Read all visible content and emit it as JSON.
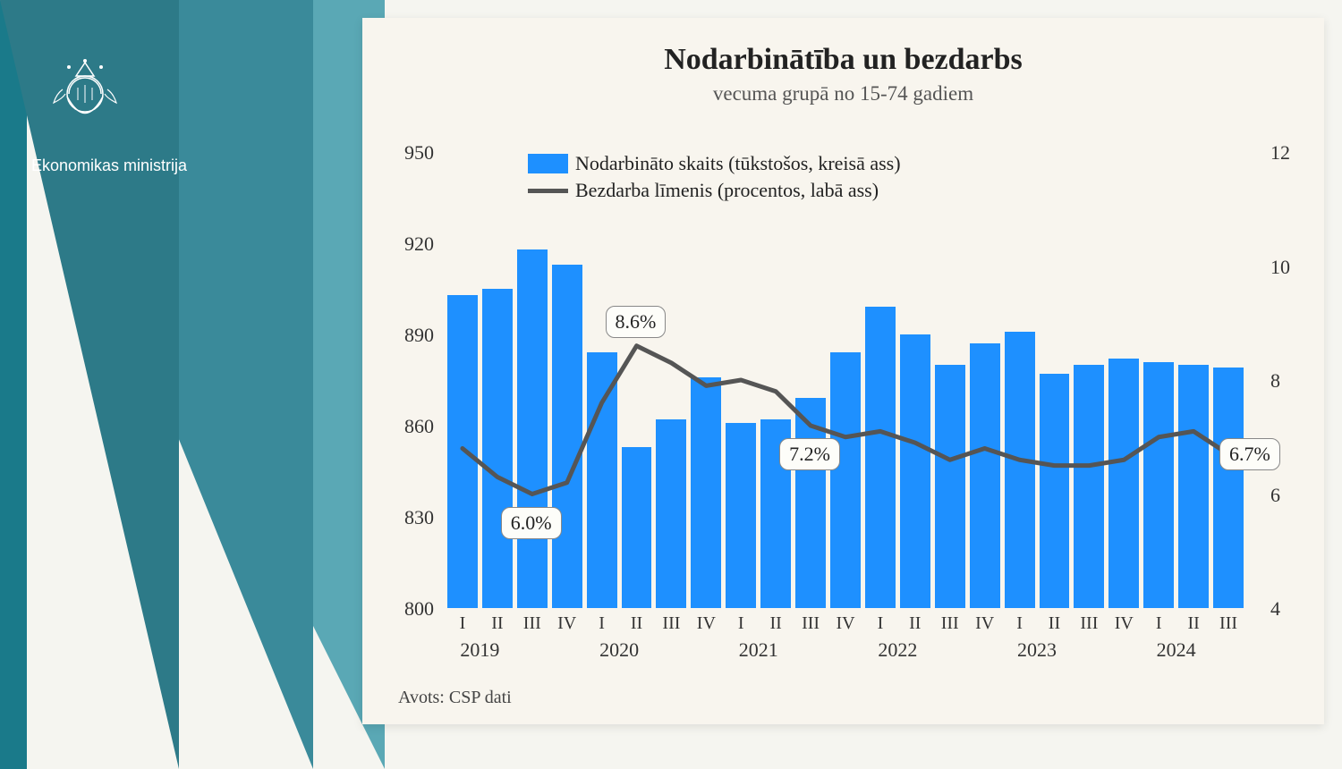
{
  "ministry_label": "Ekonomikas ministrija",
  "chart": {
    "title": "Nodarbinātība un bezdarbs",
    "subtitle": "vecuma grupā no 15-74 gadiem",
    "source": "Avots: CSP dati",
    "legend": {
      "bar_label": "Nodarbināto skaits (tūkstošos, kreisā ass)",
      "line_label": "Bezdarba līmenis (procentos, labā ass)"
    },
    "y_left": {
      "min": 800,
      "max": 950,
      "ticks": [
        800,
        830,
        860,
        890,
        920,
        950
      ]
    },
    "y_right": {
      "min": 4,
      "max": 12,
      "ticks": [
        4,
        6,
        8,
        10,
        12
      ]
    },
    "bar_color": "#1e90ff",
    "line_color": "#555555",
    "line_width": 5,
    "background_color": "#f8f5ee",
    "plot_bg": "#f8f5ee",
    "quarters": [
      "I",
      "II",
      "III",
      "IV",
      "I",
      "II",
      "III",
      "IV",
      "I",
      "II",
      "III",
      "IV",
      "I",
      "II",
      "III",
      "IV",
      "I",
      "II",
      "III",
      "IV",
      "I",
      "II",
      "III"
    ],
    "years": [
      "2019",
      "2020",
      "2021",
      "2022",
      "2023",
      "2024"
    ],
    "year_starts": [
      0,
      4,
      8,
      12,
      16,
      20
    ],
    "bar_values": [
      903,
      905,
      918,
      913,
      884,
      853,
      862,
      876,
      861,
      862,
      869,
      884,
      899,
      890,
      880,
      887,
      891,
      877,
      880,
      882,
      881,
      880,
      879
    ],
    "line_values": [
      6.8,
      6.3,
      6.0,
      6.2,
      7.6,
      8.6,
      8.3,
      7.9,
      8.0,
      7.8,
      7.2,
      7.0,
      7.1,
      6.9,
      6.6,
      6.8,
      6.6,
      6.5,
      6.5,
      6.6,
      7.0,
      7.1,
      6.7
    ],
    "callouts": [
      {
        "index": 2,
        "text": "6.0%",
        "position": "below"
      },
      {
        "index": 5,
        "text": "8.6%",
        "position": "above"
      },
      {
        "index": 10,
        "text": "7.2%",
        "position": "below"
      },
      {
        "index": 22,
        "text": "6.7%",
        "position": "right"
      }
    ]
  }
}
